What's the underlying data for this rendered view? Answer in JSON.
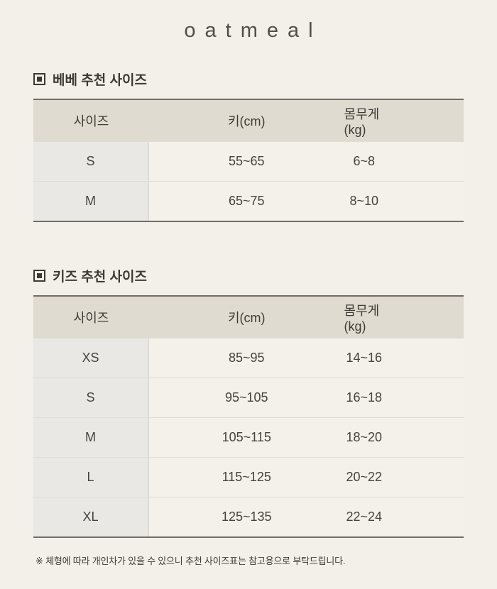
{
  "brand": {
    "name": "oatmeal"
  },
  "sections": [
    {
      "title": "베베 추천 사이즈",
      "table": {
        "headers": [
          "사이즈",
          "키(cm)",
          "몸무게(kg)"
        ],
        "rows": [
          [
            "S",
            "55~65",
            "6~8"
          ],
          [
            "M",
            "65~75",
            "8~10"
          ]
        ]
      }
    },
    {
      "title": "키즈 추천 사이즈",
      "table": {
        "headers": [
          "사이즈",
          "키(cm)",
          "몸무게(kg)"
        ],
        "rows": [
          [
            "XS",
            "85~95",
            "14~16"
          ],
          [
            "S",
            "95~105",
            "16~18"
          ],
          [
            "M",
            "105~115",
            "18~20"
          ],
          [
            "L",
            "115~125",
            "20~22"
          ],
          [
            "XL",
            "125~135",
            "22~24"
          ]
        ]
      }
    }
  ],
  "footnote": "※ 체형에 따라 개인차가 있을 수 있으니 추천 사이즈표는 참고용으로 부탁드립니다.",
  "colors": {
    "page_bg": "#f3efe9",
    "table_header_bg": "#e0dbd1",
    "first_column_bg": "#e9e8e4",
    "border_dark": "#6f6d66",
    "divider_light": "#deddd8",
    "text": "#45433d"
  }
}
